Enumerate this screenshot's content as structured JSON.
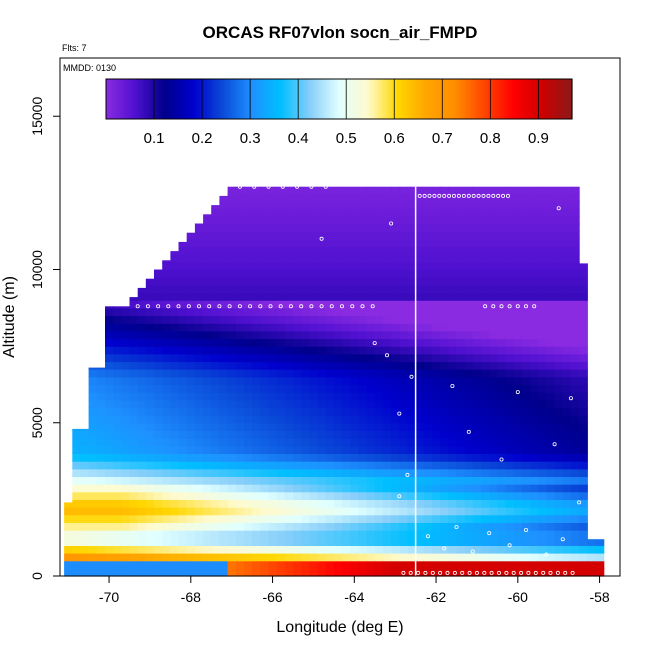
{
  "chart_data": {
    "type": "heatmap",
    "title": "ORCAS RF07vlon socn_air_FMPD",
    "note_top": "Flts: 7",
    "note_box": "MMDD: 0130",
    "xlabel": "Longitude (deg E)",
    "ylabel": "Altitude (m)",
    "xlim": [
      -71.2,
      -57.5
    ],
    "ylim": [
      0,
      16900
    ],
    "x_ticks": [
      -70,
      -68,
      -66,
      -64,
      -62,
      -60,
      -58
    ],
    "y_ticks": [
      0,
      5000,
      10000,
      15000
    ],
    "colorbar": {
      "range": [
        0,
        0.97
      ],
      "ticks": [
        0.1,
        0.2,
        0.3,
        0.4,
        0.5,
        0.6,
        0.7,
        0.8,
        0.9
      ],
      "colors": [
        "#8a2be2",
        "#5010d0",
        "#00008b",
        "#0000cd",
        "#0a4ad8",
        "#1e90ff",
        "#00bfff",
        "#87cefa",
        "#e0ffff",
        "#fffacd",
        "#ffd700",
        "#ffa500",
        "#ff8c00",
        "#ff4500",
        "#ff0000",
        "#cc0000",
        "#8b1a1a"
      ]
    },
    "flight_track_lon": -62.5,
    "data_summary": [
      {
        "altitude_m": 12500,
        "value": 0.02
      },
      {
        "altitude_m": 9000,
        "value": 0.08
      },
      {
        "altitude_m": 6500,
        "value": 0.3
      },
      {
        "altitude_m": 4000,
        "value": 0.35
      },
      {
        "altitude_m": 2200,
        "value": 0.65
      },
      {
        "altitude_m": 1200,
        "value": 0.5
      },
      {
        "altitude_m": 200,
        "value": 0.85
      }
    ]
  }
}
